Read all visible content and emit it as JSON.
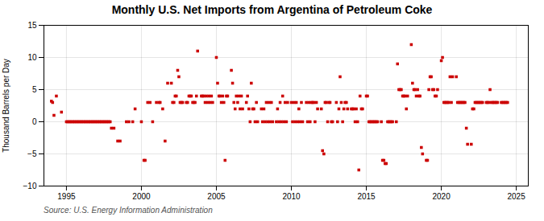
{
  "chart_data": {
    "type": "scatter",
    "title": "Monthly U.S. Net Imports from Argentina of Petroleum Coke",
    "ylabel": "Thousand Barrels per Day",
    "annotation": "Source: U.S. Energy Information Administration",
    "color": "#cc0000",
    "marker": "square",
    "grid": true,
    "xlim": [
      1993.5,
      2025.8
    ],
    "ylim": [
      -10,
      15
    ],
    "xticks": [
      1995,
      2000,
      2005,
      2010,
      2015,
      2020,
      2025
    ],
    "yticks": [
      -10,
      -5,
      0,
      5,
      10,
      15
    ],
    "x": [
      1994.0,
      1994.08,
      1994.17,
      1994.33,
      1994.67,
      1995.0,
      1995.08,
      1995.17,
      1995.25,
      1995.33,
      1995.42,
      1995.5,
      1995.58,
      1995.67,
      1995.75,
      1995.83,
      1995.92,
      1996.0,
      1996.08,
      1996.17,
      1996.25,
      1996.33,
      1996.42,
      1996.5,
      1996.58,
      1996.67,
      1996.75,
      1996.83,
      1996.92,
      1997.0,
      1997.08,
      1997.17,
      1997.25,
      1997.33,
      1997.42,
      1997.5,
      1997.58,
      1997.67,
      1997.75,
      1997.83,
      1997.92,
      1998.0,
      1998.17,
      1998.42,
      1998.58,
      1999.0,
      1999.17,
      1999.42,
      1999.58,
      2000.0,
      2000.17,
      2000.25,
      2000.42,
      2000.58,
      2000.75,
      2001.0,
      2001.17,
      2001.25,
      2001.42,
      2001.58,
      2001.75,
      2002.0,
      2002.08,
      2002.17,
      2002.25,
      2002.33,
      2002.42,
      2002.5,
      2002.58,
      2002.67,
      2002.75,
      2003.0,
      2003.08,
      2003.17,
      2003.25,
      2003.33,
      2003.42,
      2003.5,
      2003.58,
      2003.67,
      2003.75,
      2004.0,
      2004.08,
      2004.17,
      2004.25,
      2004.33,
      2004.42,
      2004.5,
      2004.58,
      2004.67,
      2004.75,
      2005.0,
      2005.08,
      2005.17,
      2005.25,
      2005.33,
      2005.42,
      2005.5,
      2005.58,
      2005.67,
      2005.75,
      2006.0,
      2006.08,
      2006.17,
      2006.25,
      2006.33,
      2006.42,
      2006.5,
      2006.58,
      2006.67,
      2006.75,
      2007.0,
      2007.08,
      2007.17,
      2007.25,
      2007.33,
      2007.42,
      2007.5,
      2007.58,
      2007.67,
      2007.75,
      2008.0,
      2008.08,
      2008.17,
      2008.25,
      2008.33,
      2008.42,
      2008.5,
      2008.58,
      2008.67,
      2008.75,
      2009.0,
      2009.08,
      2009.17,
      2009.25,
      2009.33,
      2009.42,
      2009.5,
      2009.58,
      2009.67,
      2009.75,
      2010.0,
      2010.08,
      2010.17,
      2010.25,
      2010.33,
      2010.42,
      2010.5,
      2010.58,
      2010.67,
      2010.75,
      2011.0,
      2011.08,
      2011.17,
      2011.25,
      2011.33,
      2011.42,
      2011.5,
      2011.58,
      2011.67,
      2011.75,
      2012.0,
      2012.08,
      2012.17,
      2012.25,
      2012.33,
      2012.42,
      2012.5,
      2012.58,
      2012.67,
      2012.75,
      2013.0,
      2013.08,
      2013.17,
      2013.25,
      2013.33,
      2013.42,
      2013.5,
      2013.58,
      2013.67,
      2013.75,
      2014.0,
      2014.08,
      2014.17,
      2014.25,
      2014.33,
      2014.42,
      2014.5,
      2014.58,
      2014.67,
      2014.75,
      2015.0,
      2015.08,
      2015.17,
      2015.25,
      2015.33,
      2015.42,
      2015.5,
      2015.58,
      2015.67,
      2015.75,
      2016.0,
      2016.08,
      2016.17,
      2016.25,
      2016.33,
      2016.42,
      2016.5,
      2016.58,
      2016.67,
      2016.75,
      2017.0,
      2017.08,
      2017.17,
      2017.25,
      2017.33,
      2017.42,
      2017.5,
      2017.58,
      2017.67,
      2017.75,
      2018.0,
      2018.08,
      2018.17,
      2018.25,
      2018.33,
      2018.42,
      2018.5,
      2018.58,
      2018.67,
      2018.75,
      2019.0,
      2019.08,
      2019.17,
      2019.25,
      2019.33,
      2019.42,
      2019.5,
      2019.58,
      2019.67,
      2019.75,
      2020.0,
      2020.08,
      2020.17,
      2020.25,
      2020.33,
      2020.42,
      2020.5,
      2020.58,
      2020.67,
      2020.75,
      2021.0,
      2021.08,
      2021.17,
      2021.25,
      2021.33,
      2021.42,
      2021.5,
      2021.58,
      2021.67,
      2021.75,
      2022.0,
      2022.08,
      2022.17,
      2022.25,
      2022.33,
      2022.42,
      2022.5,
      2022.58,
      2022.67,
      2022.75,
      2023.0,
      2023.08,
      2023.17,
      2023.25,
      2023.33,
      2023.42,
      2023.5,
      2023.58,
      2023.67,
      2023.75,
      2024.0,
      2024.08,
      2024.17,
      2024.25,
      2024.33,
      2024.42
    ],
    "values": [
      3.2,
      3.0,
      1.0,
      4.0,
      1.5,
      0.0,
      0.0,
      0.0,
      0.0,
      0.0,
      0.0,
      0.0,
      0.0,
      0.0,
      0.0,
      0.0,
      0.0,
      0.0,
      0.0,
      0.0,
      0.0,
      0.0,
      0.0,
      0.0,
      0.0,
      0.0,
      0.0,
      0.0,
      0.0,
      0.0,
      0.0,
      0.0,
      0.0,
      0.0,
      0.0,
      0.0,
      0.0,
      0.0,
      0.0,
      0.0,
      0.0,
      -1.0,
      -1.0,
      -3.0,
      -3.0,
      0.0,
      0.0,
      0.0,
      2.0,
      0.0,
      -6.0,
      -6.0,
      3.0,
      3.0,
      0.0,
      3.0,
      3.0,
      3.0,
      2.0,
      -3.0,
      6.0,
      6.0,
      3.0,
      3.0,
      4.0,
      4.0,
      8.0,
      7.0,
      3.0,
      3.0,
      3.0,
      3.0,
      3.0,
      4.0,
      4.0,
      4.0,
      3.0,
      3.0,
      3.0,
      4.0,
      11.0,
      4.0,
      4.0,
      4.0,
      3.0,
      4.0,
      3.0,
      4.0,
      3.0,
      4.0,
      3.0,
      10.0,
      6.0,
      4.0,
      4.0,
      3.0,
      4.0,
      3.0,
      -6.0,
      4.0,
      4.0,
      8.0,
      6.0,
      3.0,
      2.0,
      4.0,
      3.0,
      4.0,
      2.0,
      4.0,
      2.0,
      3.0,
      4.0,
      2.0,
      0.0,
      6.0,
      2.0,
      2.0,
      0.0,
      3.0,
      0.0,
      2.0,
      0.0,
      2.0,
      0.0,
      3.0,
      0.0,
      3.0,
      0.0,
      3.0,
      0.0,
      0.0,
      2.0,
      0.0,
      3.0,
      0.0,
      4.0,
      0.0,
      3.0,
      0.0,
      3.0,
      3.0,
      0.0,
      3.0,
      0.0,
      3.0,
      0.0,
      2.0,
      0.0,
      3.0,
      0.0,
      3.0,
      0.0,
      3.0,
      0.0,
      3.0,
      3.0,
      3.0,
      0.0,
      3.0,
      2.0,
      2.0,
      -4.5,
      -5.0,
      3.0,
      3.0,
      0.0,
      3.0,
      3.0,
      0.0,
      0.0,
      3.0,
      0.0,
      2.0,
      7.0,
      3.0,
      0.0,
      2.0,
      3.0,
      3.0,
      2.0,
      2.0,
      2.0,
      2.0,
      0.0,
      2.0,
      0.0,
      -7.5,
      4.0,
      2.0,
      2.0,
      4.0,
      4.0,
      0.0,
      0.0,
      0.0,
      0.0,
      0.0,
      0.0,
      0.0,
      0.0,
      0.0,
      -6.0,
      -6.0,
      -6.5,
      -6.5,
      0.0,
      0.0,
      0.0,
      0.0,
      0.0,
      0.0,
      9.0,
      5.0,
      5.0,
      5.0,
      4.0,
      4.0,
      4.0,
      2.0,
      4.0,
      12.0,
      6.0,
      5.0,
      5.0,
      4.0,
      5.0,
      4.0,
      4.0,
      -4.0,
      -5.0,
      -6.0,
      -6.0,
      5.0,
      7.0,
      7.0,
      5.0,
      5.0,
      4.0,
      4.0,
      5.0,
      9.5,
      10.0,
      3.0,
      3.0,
      3.0,
      3.0,
      3.0,
      7.0,
      3.0,
      7.0,
      7.0,
      3.0,
      3.0,
      3.0,
      3.0,
      3.0,
      3.0,
      3.0,
      -1.0,
      -3.5,
      -3.5,
      2.0,
      2.0,
      3.0,
      3.0,
      3.0,
      3.0,
      3.0,
      3.0,
      3.0,
      3.0,
      3.0,
      3.0,
      5.0,
      3.0,
      3.0,
      3.0,
      3.0,
      3.0,
      3.0,
      3.0,
      3.0,
      3.0,
      3.0,
      3.0,
      3.0
    ]
  }
}
